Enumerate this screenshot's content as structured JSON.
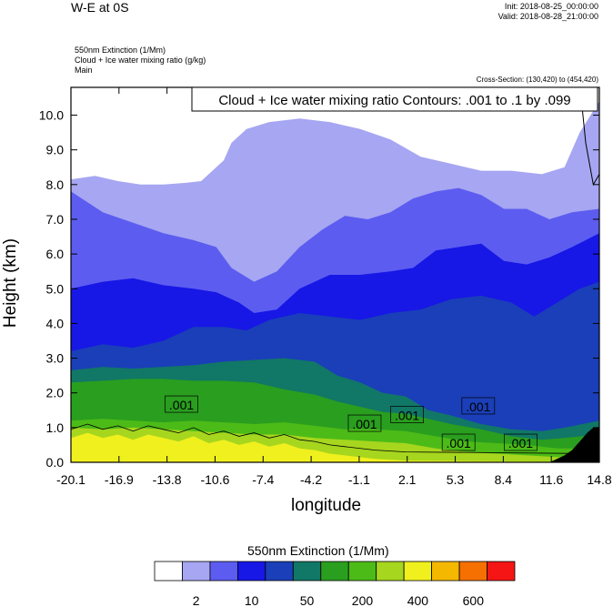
{
  "header": {
    "title": "W-E at 0S",
    "init": "Init: 2018-08-25_00:00:00",
    "valid": "Valid: 2018-08-28_21:00:00",
    "field_line_1": "550nm Extinction   (1/Mm)",
    "field_line_2": "Cloud + Ice water mixing ratio   (g/kg)",
    "field_line_3": "Main",
    "cross_section": "Cross-Section: (130,420) to (454,420)"
  },
  "chart_data": {
    "type": "heatmap",
    "xlabel": "longitude",
    "ylabel": "Height (km)",
    "x_ticks": [
      "-20.1",
      "-16.9",
      "-13.8",
      "-10.6",
      "-7.4",
      "-4.2",
      "-1.1",
      "2.1",
      "5.3",
      "8.4",
      "11.6",
      "14.8"
    ],
    "y_ticks": [
      "0.0",
      "1.0",
      "2.0",
      "3.0",
      "4.0",
      "5.0",
      "6.0",
      "7.0",
      "8.0",
      "9.0",
      "10.0"
    ],
    "xlim": [
      -20.1,
      14.8
    ],
    "ylim": [
      0,
      10.8
    ],
    "contour_title": "Cloud + Ice water mixing ratio Contours: .001 to .1 by .099",
    "contour_labels": [
      {
        "text": ".001",
        "x": -12.8,
        "y": 1.65
      },
      {
        "text": ".001",
        "x": -0.7,
        "y": 1.1
      },
      {
        "text": ".001",
        "x": 2.1,
        "y": 1.35
      },
      {
        "text": ".001",
        "x": 6.8,
        "y": 1.6
      },
      {
        "text": ".001",
        "x": 5.5,
        "y": 0.55
      },
      {
        "text": ".001",
        "x": 9.6,
        "y": 0.55
      }
    ],
    "layers": [
      {
        "color": "#a6a6f2",
        "top": [
          [
            -20.1,
            8.15
          ],
          [
            -18.5,
            8.25
          ],
          [
            -17,
            8.1
          ],
          [
            -15.5,
            8.0
          ],
          [
            -14,
            8.0
          ],
          [
            -12.5,
            8.05
          ],
          [
            -11.5,
            8.1
          ],
          [
            -10.5,
            8.5
          ],
          [
            -10,
            8.7
          ],
          [
            -9.5,
            9.2
          ],
          [
            -8.5,
            9.6
          ],
          [
            -7,
            9.8
          ],
          [
            -5,
            9.9
          ],
          [
            -3,
            9.8
          ],
          [
            -1,
            9.6
          ],
          [
            1,
            9.3
          ],
          [
            3,
            8.8
          ],
          [
            5,
            8.6
          ],
          [
            7,
            8.4
          ],
          [
            9,
            8.4
          ],
          [
            11,
            8.3
          ],
          [
            12.5,
            8.5
          ],
          [
            13.5,
            9.5
          ],
          [
            14.8,
            10.4
          ]
        ]
      },
      {
        "color": "#5c5cf0",
        "top": [
          [
            -20.1,
            7.8
          ],
          [
            -18,
            7.2
          ],
          [
            -16,
            6.9
          ],
          [
            -14,
            6.6
          ],
          [
            -12,
            6.4
          ],
          [
            -10.5,
            6.2
          ],
          [
            -9.5,
            5.6
          ],
          [
            -8,
            5.2
          ],
          [
            -6.5,
            5.5
          ],
          [
            -5,
            6.2
          ],
          [
            -3.5,
            6.7
          ],
          [
            -2,
            7.1
          ],
          [
            -0.5,
            7.0
          ],
          [
            1,
            7.2
          ],
          [
            2.5,
            7.6
          ],
          [
            4,
            7.8
          ],
          [
            5.5,
            7.9
          ],
          [
            7,
            7.7
          ],
          [
            8.5,
            7.3
          ],
          [
            10,
            7.3
          ],
          [
            11.5,
            7.0
          ],
          [
            13,
            7.2
          ],
          [
            14.8,
            7.3
          ]
        ]
      },
      {
        "color": "#1717e6",
        "top": [
          [
            -20.1,
            5.0
          ],
          [
            -18,
            5.2
          ],
          [
            -16,
            5.3
          ],
          [
            -14,
            5.1
          ],
          [
            -12,
            5.0
          ],
          [
            -10.5,
            4.9
          ],
          [
            -9,
            4.6
          ],
          [
            -8,
            4.3
          ],
          [
            -6.5,
            4.4
          ],
          [
            -5,
            5.0
          ],
          [
            -3,
            5.4
          ],
          [
            -1,
            5.4
          ],
          [
            1,
            5.5
          ],
          [
            2.5,
            5.6
          ],
          [
            4,
            6.1
          ],
          [
            5.5,
            6.2
          ],
          [
            7,
            6.3
          ],
          [
            8.5,
            5.8
          ],
          [
            10,
            5.7
          ],
          [
            11.5,
            5.9
          ],
          [
            13,
            6.2
          ],
          [
            14.8,
            6.6
          ]
        ]
      },
      {
        "color": "#1a3fb8",
        "top": [
          [
            -20.1,
            3.2
          ],
          [
            -18,
            3.4
          ],
          [
            -16,
            3.3
          ],
          [
            -14,
            3.5
          ],
          [
            -12,
            3.9
          ],
          [
            -10,
            3.9
          ],
          [
            -8.5,
            3.8
          ],
          [
            -7,
            4.1
          ],
          [
            -5,
            4.3
          ],
          [
            -3,
            4.2
          ],
          [
            -1,
            4.1
          ],
          [
            1,
            4.3
          ],
          [
            3,
            4.4
          ],
          [
            5,
            4.7
          ],
          [
            7,
            4.8
          ],
          [
            9,
            4.6
          ],
          [
            10.5,
            4.2
          ],
          [
            12,
            4.6
          ],
          [
            13.5,
            5.0
          ],
          [
            14.8,
            5.2
          ]
        ]
      },
      {
        "color": "#117766",
        "top": [
          [
            -20.1,
            2.65
          ],
          [
            -18,
            2.75
          ],
          [
            -16,
            2.7
          ],
          [
            -14,
            2.75
          ],
          [
            -12,
            2.8
          ],
          [
            -10,
            2.9
          ],
          [
            -8,
            2.95
          ],
          [
            -6,
            3.0
          ],
          [
            -4,
            2.9
          ],
          [
            -2.5,
            2.5
          ],
          [
            -1,
            2.3
          ],
          [
            0.5,
            2.0
          ],
          [
            2,
            1.9
          ],
          [
            3.5,
            1.5
          ],
          [
            5,
            1.35
          ],
          [
            7,
            1.1
          ],
          [
            9,
            0.95
          ],
          [
            11,
            0.9
          ],
          [
            12.5,
            1.0
          ],
          [
            14.8,
            1.2
          ]
        ]
      },
      {
        "color": "#2a9e1f",
        "top": [
          [
            -20.1,
            2.3
          ],
          [
            -18,
            2.35
          ],
          [
            -16,
            2.4
          ],
          [
            -14,
            2.4
          ],
          [
            -12,
            2.35
          ],
          [
            -10,
            2.35
          ],
          [
            -8,
            2.3
          ],
          [
            -6,
            2.1
          ],
          [
            -4,
            1.95
          ],
          [
            -2.5,
            1.75
          ],
          [
            -1,
            1.6
          ],
          [
            0.5,
            1.45
          ],
          [
            2,
            1.4
          ],
          [
            3.5,
            1.25
          ],
          [
            5,
            1.1
          ],
          [
            7,
            0.95
          ],
          [
            9,
            0.75
          ],
          [
            11,
            0.65
          ],
          [
            12.5,
            0.7
          ],
          [
            14.8,
            0.8
          ]
        ]
      },
      {
        "color": "#4cbb17",
        "top": [
          [
            -20.1,
            1.2
          ],
          [
            -18,
            1.25
          ],
          [
            -16,
            1.2
          ],
          [
            -14,
            1.15
          ],
          [
            -12,
            1.2
          ],
          [
            -10,
            1.15
          ],
          [
            -8,
            1.1
          ],
          [
            -6,
            1.15
          ],
          [
            -4,
            1.05
          ],
          [
            -2,
            0.95
          ],
          [
            0,
            0.95
          ],
          [
            2,
            0.9
          ],
          [
            4,
            0.75
          ],
          [
            6,
            0.6
          ],
          [
            8,
            0.55
          ],
          [
            10,
            0.5
          ],
          [
            12,
            0.4
          ],
          [
            14.8,
            0.4
          ]
        ]
      },
      {
        "color": "#a6d61e",
        "top": [
          [
            -20.1,
            1.0
          ],
          [
            -18,
            0.95
          ],
          [
            -16,
            1.0
          ],
          [
            -14,
            0.95
          ],
          [
            -12,
            0.9
          ],
          [
            -10,
            0.85
          ],
          [
            -8,
            0.8
          ],
          [
            -6,
            0.8
          ],
          [
            -4,
            0.7
          ],
          [
            -2,
            0.65
          ],
          [
            0,
            0.6
          ],
          [
            2,
            0.55
          ],
          [
            4,
            0.4
          ],
          [
            6,
            0.3
          ],
          [
            8,
            0.25
          ],
          [
            10,
            0.2
          ],
          [
            12,
            0.15
          ],
          [
            14.8,
            0.1
          ]
        ]
      },
      {
        "color": "#f0f01e",
        "top": [
          [
            -20.1,
            0.7
          ],
          [
            -19,
            0.85
          ],
          [
            -18,
            0.7
          ],
          [
            -17,
            0.8
          ],
          [
            -16,
            0.65
          ],
          [
            -15,
            0.8
          ],
          [
            -14,
            0.7
          ],
          [
            -13,
            0.6
          ],
          [
            -12,
            0.75
          ],
          [
            -11,
            0.55
          ],
          [
            -10,
            0.65
          ],
          [
            -9,
            0.5
          ],
          [
            -8,
            0.6
          ],
          [
            -7,
            0.45
          ],
          [
            -6,
            0.55
          ],
          [
            -5,
            0.4
          ],
          [
            -4,
            0.35
          ],
          [
            -3,
            0.25
          ],
          [
            -2,
            0.2
          ],
          [
            0,
            0.1
          ],
          [
            2,
            0.05
          ],
          [
            14.8,
            0.0
          ]
        ]
      }
    ],
    "terrain": [
      [
        11.5,
        0.0
      ],
      [
        12,
        0.1
      ],
      [
        12.5,
        0.2
      ],
      [
        13,
        0.35
      ],
      [
        13.5,
        0.6
      ],
      [
        14,
        0.85
      ],
      [
        14.4,
        1.0
      ],
      [
        14.8,
        1.0
      ]
    ],
    "colorbar": {
      "title": "550nm Extinction  (1/Mm)",
      "colors": [
        "#ffffff",
        "#a6a6f2",
        "#5c5cf0",
        "#1717e6",
        "#1a3fb8",
        "#117766",
        "#2a9e1f",
        "#4cbb17",
        "#a6d61e",
        "#f0f01e",
        "#f5b800",
        "#f57000",
        "#f51515"
      ],
      "tick_labels": [
        "2",
        "10",
        "50",
        "200",
        "400",
        "600"
      ]
    }
  }
}
